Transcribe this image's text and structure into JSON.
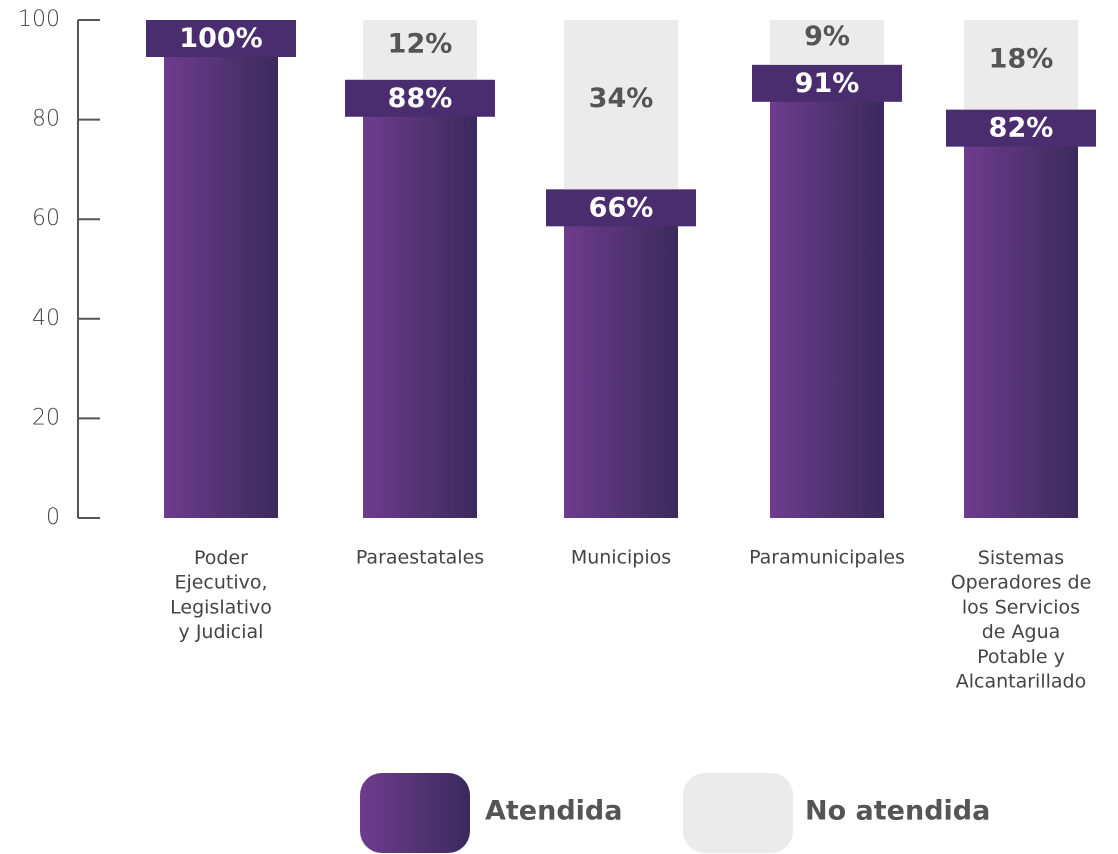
{
  "chart_data": {
    "type": "stacked_bar",
    "categories": [
      "Poder\nEjecutivo,\nLegislativo\ny Judicial",
      "Paraestatales",
      "Municipios",
      "Paramunicipales",
      "Sistemas\nOperadores de\nlos Servicios\nde Agua\nPotable y\nAlcantarillado"
    ],
    "series": [
      {
        "name": "Atendida",
        "color": "#5a3380",
        "values": [
          100,
          88,
          66,
          91,
          82
        ],
        "value_labels": [
          "100%",
          "88%",
          "66%",
          "91%",
          "82%"
        ]
      },
      {
        "name": "No atendida",
        "color": "#ebebeb",
        "values": [
          0,
          12,
          34,
          9,
          18
        ],
        "value_labels": [
          null,
          "12%",
          "34%",
          "9%",
          "18%"
        ]
      }
    ],
    "ylim": [
      0,
      100
    ],
    "yticks": [
      0,
      20,
      40,
      60,
      80,
      100
    ],
    "grid": false
  }
}
